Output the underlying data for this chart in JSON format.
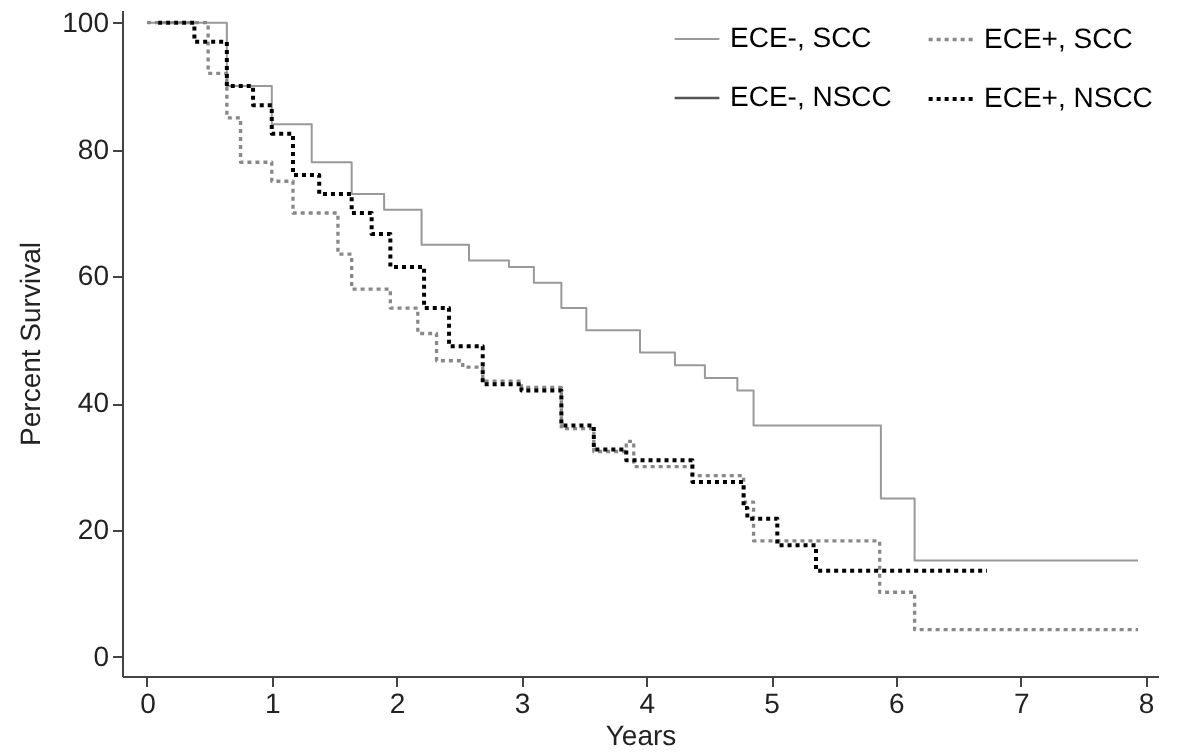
{
  "chart_data": {
    "type": "step",
    "xlabel": "Years",
    "ylabel": "Percent Survival",
    "xlim": [
      -0.2,
      8.1
    ],
    "ylim": [
      -3,
      102
    ],
    "xticks": [
      0,
      1,
      2,
      3,
      4,
      5,
      6,
      7,
      8
    ],
    "yticks": [
      0,
      20,
      40,
      60,
      80,
      100
    ],
    "grid": false,
    "legend": "top right",
    "marker": "none",
    "series": [
      {
        "name": "ECE-, SCC",
        "color": "#999999",
        "line_style": "solid",
        "x": [
          0,
          0.64,
          1.0,
          1.32,
          1.64,
          1.9,
          2.2,
          2.58,
          2.9,
          3.1,
          3.32,
          3.52,
          3.95,
          4.23,
          4.47,
          4.73,
          4.86,
          5.88,
          6.15,
          7.94
        ],
        "values": [
          100,
          90,
          84,
          78,
          73,
          70.5,
          65,
          62.5,
          61.5,
          59,
          55,
          51.5,
          48,
          46,
          44,
          42,
          36.5,
          25,
          15.2,
          15.2
        ]
      },
      {
        "name": "ECE-, NSCC",
        "color": "#555555",
        "line_style": "solid"
      },
      {
        "name": "ECE+, SCC",
        "color": "#888888",
        "line_style": "dotted",
        "x": [
          0,
          0.49,
          0.64,
          0.75,
          1.0,
          1.17,
          1.53,
          1.64,
          1.95,
          2.17,
          2.32,
          2.53,
          2.69,
          3.0,
          3.32,
          3.58,
          3.84,
          3.9,
          4.37,
          4.78,
          4.86,
          5.87,
          6.15,
          7.94
        ],
        "values": [
          100,
          92,
          85,
          78,
          75,
          70,
          63.5,
          58,
          55,
          51,
          46.7,
          45.7,
          43.5,
          42.5,
          36,
          32.4,
          34,
          30,
          28.6,
          24.4,
          18.3,
          10.2,
          4.3,
          4.3
        ]
      },
      {
        "name": "ECE+, NSCC",
        "color": "#000000",
        "line_style": "dotted",
        "x": [
          0.09,
          0.38,
          0.64,
          0.85,
          1.0,
          1.17,
          1.38,
          1.64,
          1.8,
          1.95,
          2.22,
          2.42,
          2.69,
          3.0,
          3.32,
          3.58,
          3.84,
          4.37,
          4.78,
          4.81,
          5.05,
          5.36,
          6.73
        ],
        "values": [
          100,
          97,
          90,
          87,
          82.5,
          76,
          73,
          70,
          66.7,
          61.5,
          55,
          49,
          43,
          42,
          36.5,
          32.7,
          31,
          27.6,
          23.5,
          21.8,
          17.6,
          13.6,
          13.6
        ]
      }
    ]
  }
}
